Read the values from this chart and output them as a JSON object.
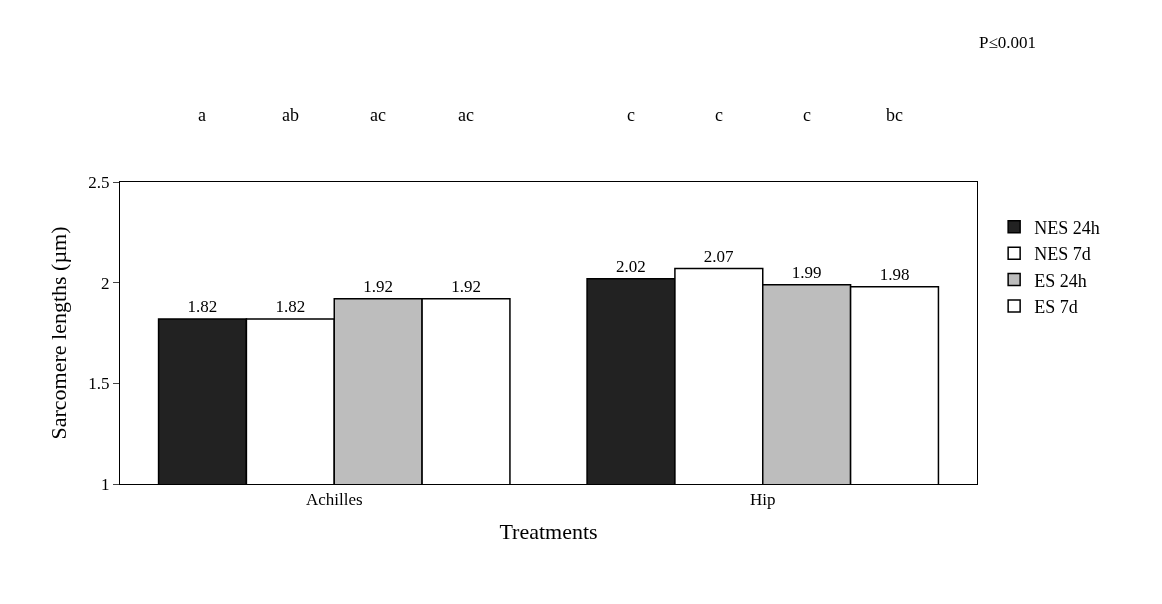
{
  "chart_data": {
    "type": "bar",
    "xlabel": "Treatments",
    "ylabel": "Sarcomere lengths (µm)",
    "categories": [
      "Achilles",
      "Hip"
    ],
    "series": [
      {
        "name": "NES 24h",
        "color": "#222222",
        "values": [
          1.82,
          2.02
        ]
      },
      {
        "name": "NES 7d",
        "color": "#ffffff",
        "values": [
          1.82,
          2.07
        ]
      },
      {
        "name": "ES 24h",
        "color": "#bdbdbd",
        "values": [
          1.92,
          1.99
        ]
      },
      {
        "name": "ES 7d",
        "color": "#ffffff",
        "values": [
          1.92,
          1.98
        ]
      }
    ],
    "ylim": [
      1,
      2.5
    ],
    "yticks": [
      1,
      1.5,
      2,
      2.5
    ],
    "data_labels": true,
    "legend": "right",
    "annotations": [
      "a",
      "ab",
      "ac",
      "ac",
      "c",
      "c",
      "c",
      "bc",
      "P≤0.001"
    ]
  }
}
